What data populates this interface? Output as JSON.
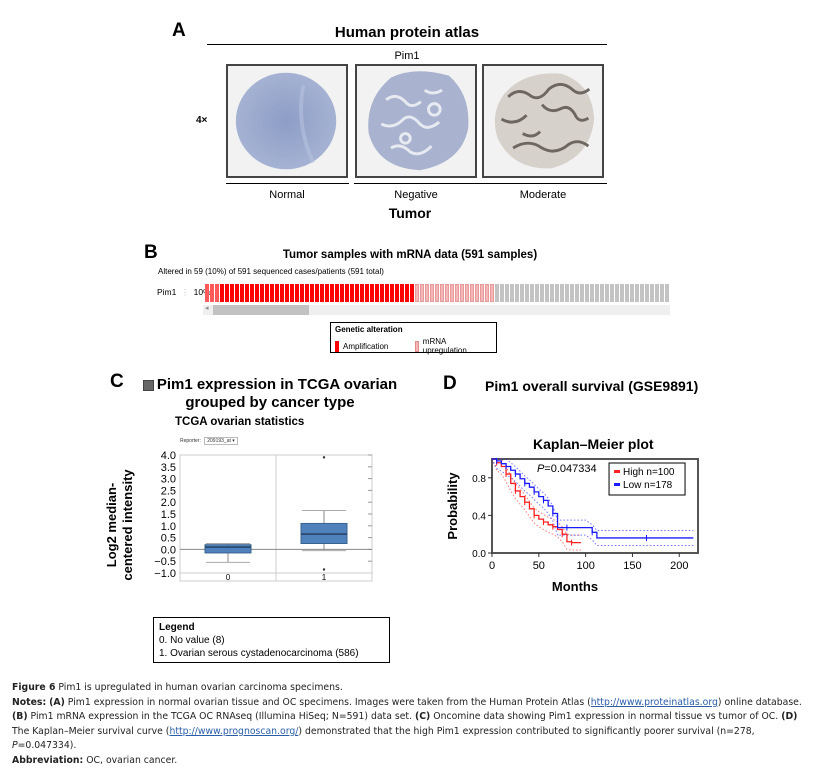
{
  "panels": {
    "a": {
      "letter": "A",
      "title": "Human protein atlas",
      "gene": "Pim1",
      "magnification": "4×",
      "tissues": [
        {
          "label": "Normal",
          "stain": "blue"
        },
        {
          "label": "Negative",
          "stain": "blue-gland"
        },
        {
          "label": "Moderate",
          "stain": "brown-gland"
        }
      ],
      "group_label": "Tumor"
    },
    "b": {
      "letter": "B",
      "title": "Tumor samples with mRNA data (591 samples)",
      "altered_text": "Altered in 59 (10%) of 591 sequenced cases/patients (591 total)",
      "gene": "Pim1",
      "percent": "10%",
      "track_counts": {
        "amplification_light": 3,
        "amplification": 39,
        "mrna_upregulation": 16,
        "none": 35
      },
      "legend": {
        "title": "Genetic alteration",
        "items": [
          {
            "label": "Amplification",
            "color": "#ff0000"
          },
          {
            "label": "mRNA upregulation",
            "color": "#f4b6b6"
          }
        ]
      }
    },
    "c": {
      "letter": "C",
      "title_line1": "Pim1 expression in TCGA ovarian",
      "title_line2": "grouped by cancer type",
      "subtitle": "TCGA ovarian statistics",
      "reporter_label": "Reporter:",
      "reporter_value": "209193_at ▾",
      "ylabel_line1": "Log2 median-",
      "ylabel_line2": "centered intensity",
      "legend": {
        "title": "Legend",
        "items": [
          "0. No value (8)",
          "1. Ovarian serous cystadenocarcinoma (586)"
        ]
      }
    },
    "d": {
      "letter": "D",
      "title": "Pim1 overall survival (GSE9891)",
      "subtitle": "Kaplan–Meier plot",
      "p_label": "P",
      "p_value": "=0.047334",
      "legend": [
        {
          "label": "High n=100",
          "color": "#ff2020"
        },
        {
          "label": "Low n=178",
          "color": "#1a1aff"
        }
      ]
    }
  },
  "chart_data": [
    {
      "type": "box",
      "title": "TCGA ovarian statistics",
      "xlabel": "",
      "ylabel": "Log2 median-centered intensity",
      "ylim": [
        -1.0,
        4.0
      ],
      "yticks": [
        "4.0",
        "3.5",
        "3.0",
        "2.5",
        "2.0",
        "1.5",
        "1.0",
        "0.5",
        "0.0",
        "−0.5",
        "−1.0"
      ],
      "categories": [
        "0",
        "1"
      ],
      "series": [
        {
          "name": "0",
          "q1": -0.15,
          "median": 0.1,
          "q3": 0.2,
          "whisker_low": -0.55,
          "whisker_high": 0.25,
          "outliers": []
        },
        {
          "name": "1",
          "q1": 0.25,
          "median": 0.65,
          "q3": 1.1,
          "whisker_low": -0.05,
          "whisker_high": 1.65,
          "outliers": [
            3.9,
            -0.85
          ]
        }
      ],
      "color": "#4f81bd"
    },
    {
      "type": "line",
      "title": "Kaplan–Meier plot",
      "xlabel": "Months",
      "ylabel": "Probability",
      "xlim": [
        0,
        220
      ],
      "ylim": [
        0,
        1.0
      ],
      "xticks": [
        "0",
        "50",
        "100",
        "150",
        "200"
      ],
      "yticks": [
        "0.0",
        "0.4",
        "0.8"
      ],
      "annotation": "P=0.047334",
      "legend_position": "top-right",
      "series": [
        {
          "name": "High n=100",
          "color": "#ff2020",
          "x": [
            0,
            5,
            10,
            15,
            20,
            25,
            30,
            35,
            40,
            45,
            50,
            55,
            60,
            65,
            70,
            75,
            80,
            85,
            95
          ],
          "y": [
            1.0,
            0.96,
            0.92,
            0.84,
            0.74,
            0.66,
            0.6,
            0.54,
            0.47,
            0.4,
            0.36,
            0.33,
            0.3,
            0.28,
            0.25,
            0.2,
            0.12,
            0.11,
            0.11
          ]
        },
        {
          "name": "Low n=178",
          "color": "#1a1aff",
          "x": [
            0,
            5,
            10,
            15,
            20,
            25,
            30,
            35,
            40,
            45,
            50,
            55,
            60,
            65,
            70,
            80,
            100,
            107,
            112,
            165,
            215
          ],
          "y": [
            1.0,
            0.98,
            0.95,
            0.92,
            0.88,
            0.84,
            0.79,
            0.74,
            0.7,
            0.65,
            0.6,
            0.56,
            0.5,
            0.42,
            0.27,
            0.27,
            0.27,
            0.22,
            0.16,
            0.16,
            0.16
          ]
        }
      ]
    }
  ],
  "caption": {
    "figure_label": "Figure 6",
    "figure_title": " Pim1 is upregulated in human ovarian carcinoma specimens.",
    "notes_label": "Notes:",
    "notes_a_label": "(A)",
    "notes_a": " Pim1 expression in normal ovarian tissue and OC specimens. Images were taken from the Human Protein Atlas (",
    "link1": "http://www.proteinatlas.org",
    "notes_a_end": ") online database.",
    "notes_b_label": "(B)",
    "notes_b": " Pim1 mRNA expression in the TCGA OC RNAseq (Illumina HiSeq; N=591) data set. ",
    "notes_c_label": "(C)",
    "notes_c": " Oncomine data showing Pim1 expression in normal tissue vs tumor of OC. ",
    "notes_d_label": "(D)",
    "notes_d": " The Kaplan–Meier survival curve (",
    "link2": "http://www.prognoscan.org/",
    "notes_d_end": ") demonstrated that the high Pim1 expression contributed to significantly poorer survival (n=278, ",
    "notes_p": "P",
    "notes_p_end": "=0.047334).",
    "abbr_label": "Abbreviation:",
    "abbr": " OC, ovarian cancer."
  }
}
